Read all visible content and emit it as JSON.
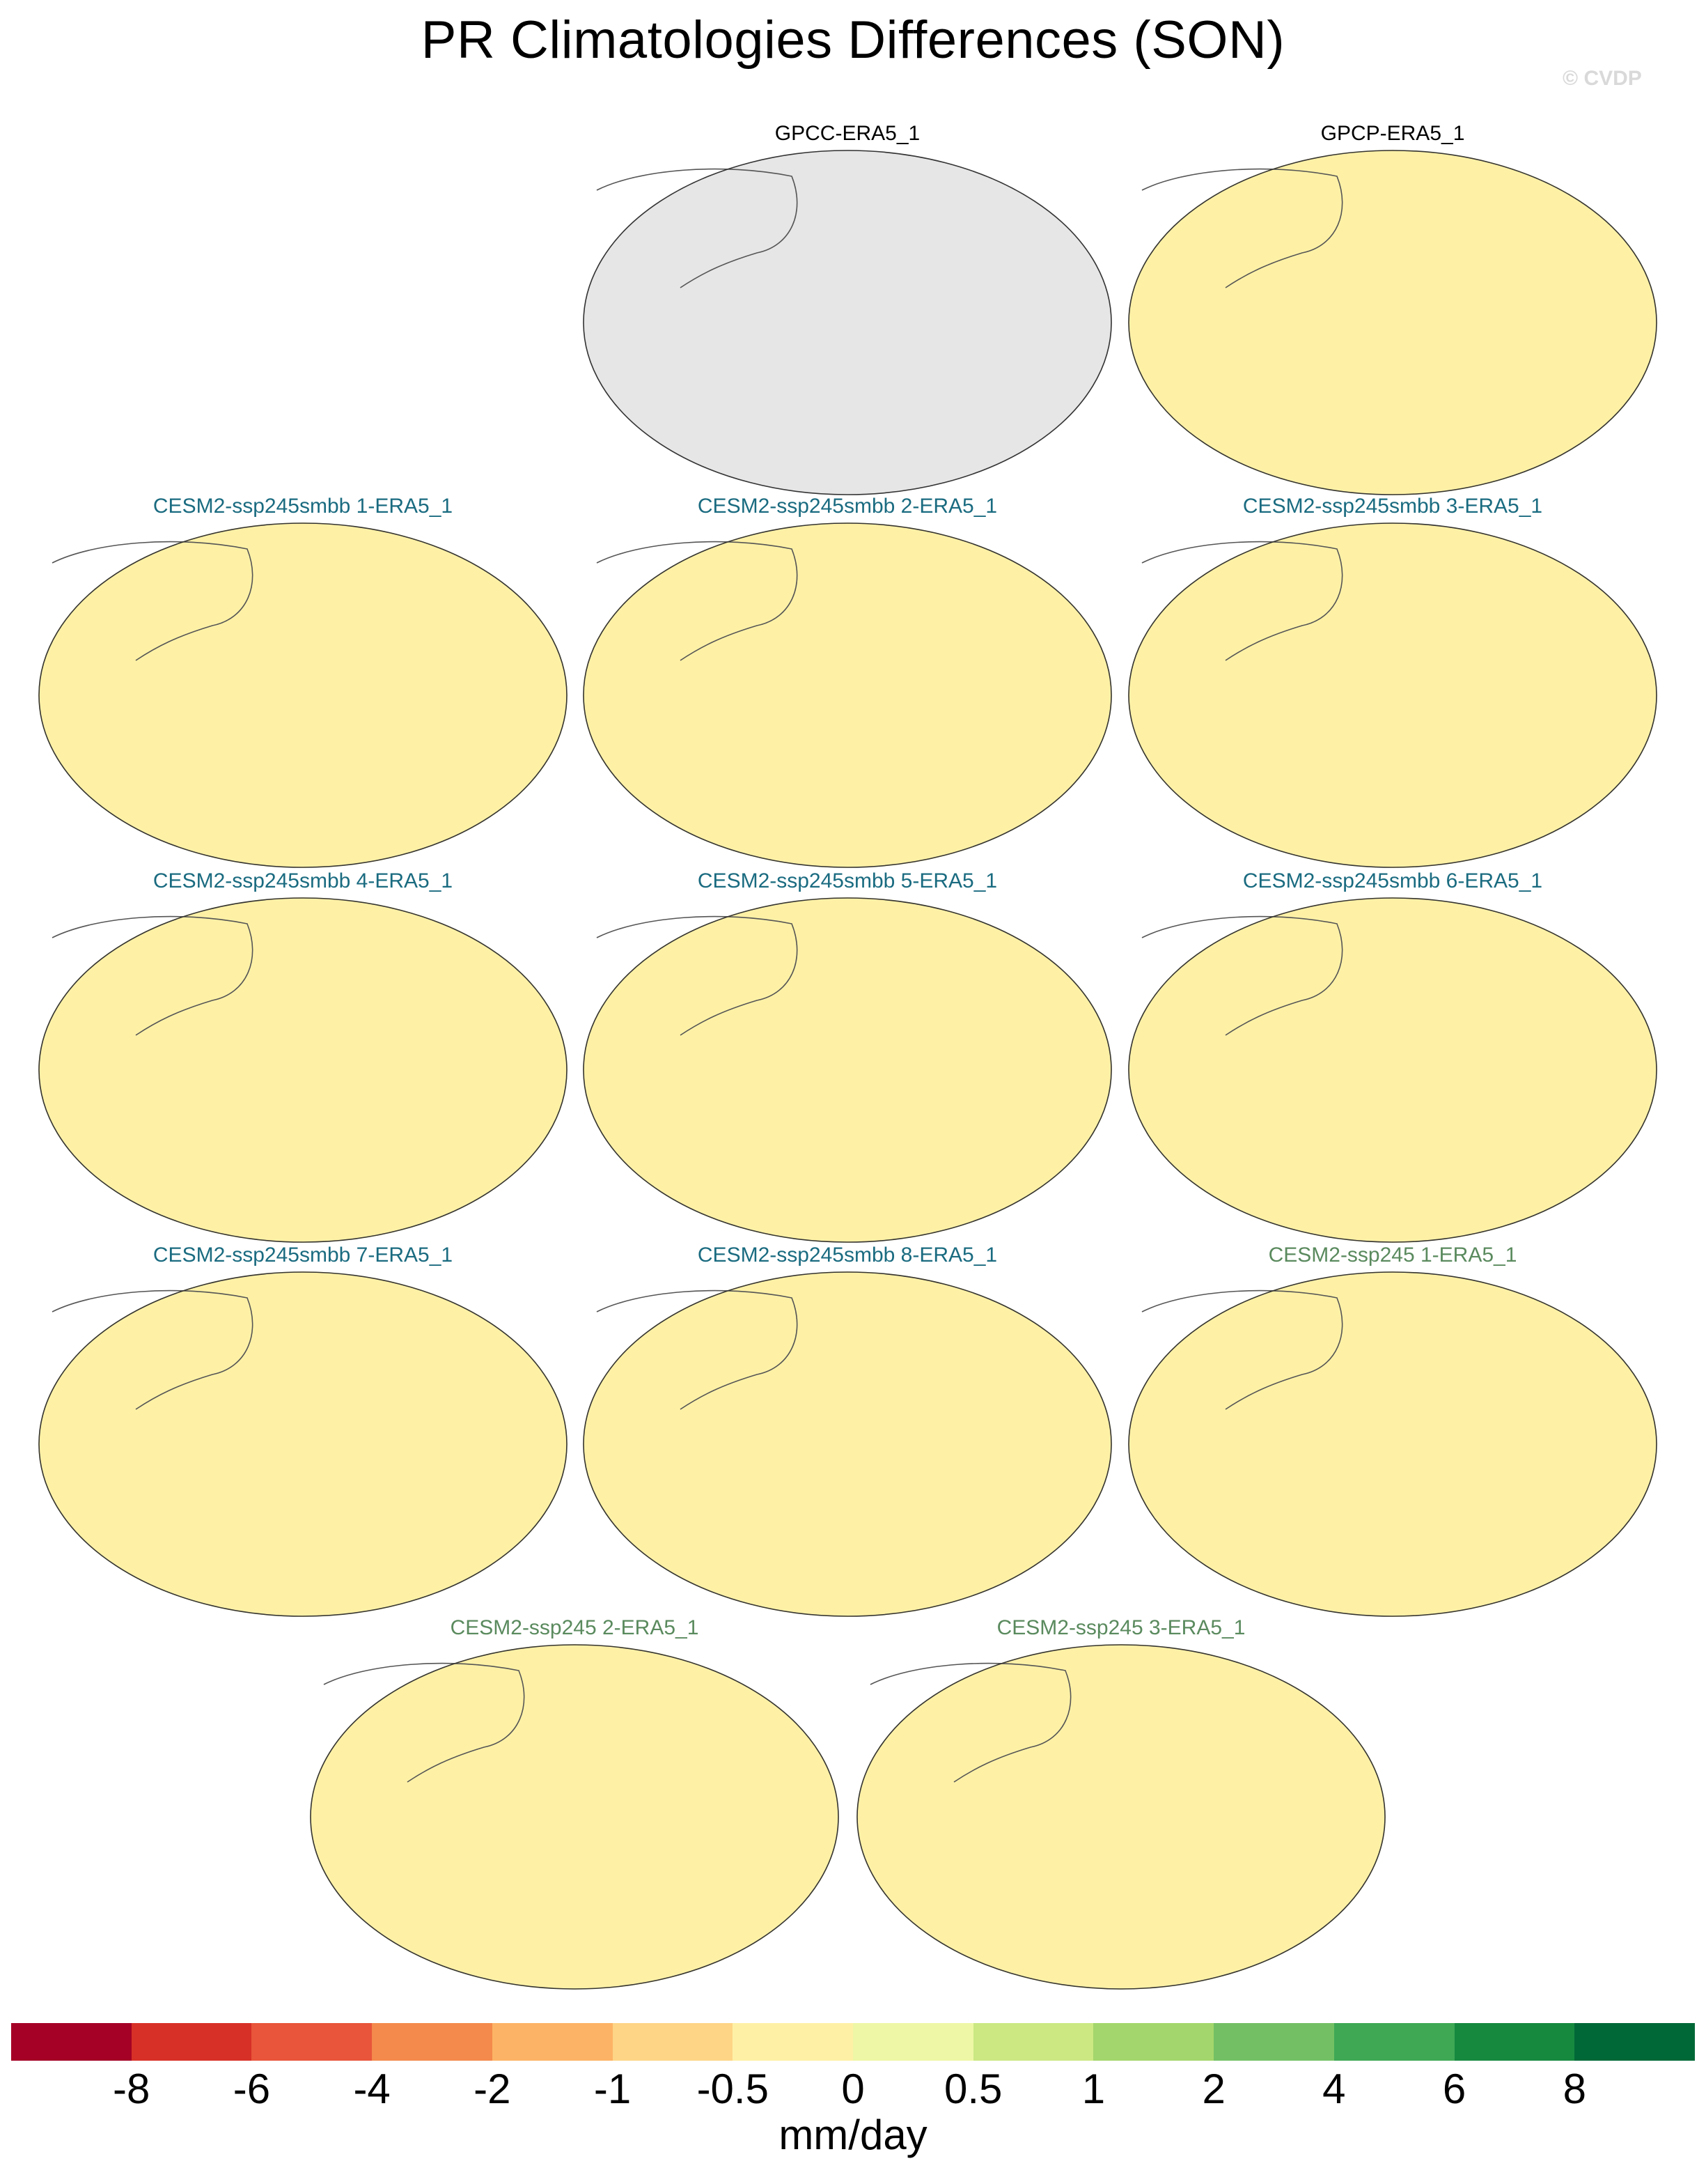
{
  "title": "PR Climatologies Differences (SON)",
  "watermark": "© CVDP",
  "panels": [
    {
      "label": "GPCC-ERA5_1",
      "kind": "obs",
      "land_only": true
    },
    {
      "label": "GPCP-ERA5_1",
      "kind": "obs",
      "land_only": false
    },
    {
      "label": "CESM2-ssp245smbb 1-ERA5_1",
      "kind": "smbb",
      "land_only": false
    },
    {
      "label": "CESM2-ssp245smbb 2-ERA5_1",
      "kind": "smbb",
      "land_only": false
    },
    {
      "label": "CESM2-ssp245smbb 3-ERA5_1",
      "kind": "smbb",
      "land_only": false
    },
    {
      "label": "CESM2-ssp245smbb 4-ERA5_1",
      "kind": "smbb",
      "land_only": false
    },
    {
      "label": "CESM2-ssp245smbb 5-ERA5_1",
      "kind": "smbb",
      "land_only": false
    },
    {
      "label": "CESM2-ssp245smbb 6-ERA5_1",
      "kind": "smbb",
      "land_only": false
    },
    {
      "label": "CESM2-ssp245smbb 7-ERA5_1",
      "kind": "smbb",
      "land_only": false
    },
    {
      "label": "CESM2-ssp245smbb 8-ERA5_1",
      "kind": "smbb",
      "land_only": false
    },
    {
      "label": "CESM2-ssp245 1-ERA5_1",
      "kind": "ssp",
      "land_only": false
    },
    {
      "label": "CESM2-ssp245 2-ERA5_1",
      "kind": "ssp",
      "land_only": false
    },
    {
      "label": "CESM2-ssp245 3-ERA5_1",
      "kind": "ssp",
      "land_only": false
    }
  ],
  "colorbar": {
    "labels": [
      "-8",
      "-6",
      "-4",
      "-2",
      "-1",
      "-0.5",
      "0",
      "0.5",
      "1",
      "2",
      "4",
      "6",
      "8"
    ],
    "colors": [
      "#a50026",
      "#d73027",
      "#e8553a",
      "#f48a4c",
      "#fdb365",
      "#fed586",
      "#fef1a6",
      "#eef7a6",
      "#cbe883",
      "#a3d66c",
      "#73c064",
      "#3ea855",
      "#16893f",
      "#006837"
    ],
    "units": "mm/day"
  },
  "colors": {
    "missing_land_mask": "#e6e6e6",
    "coastline": "#555555"
  }
}
